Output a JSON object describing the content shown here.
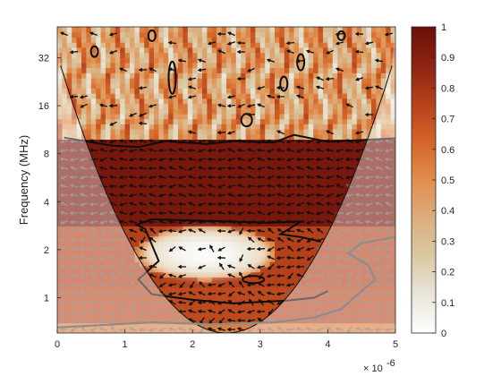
{
  "chart_data": {
    "type": "heatmap",
    "title": "",
    "xlabel": "",
    "ylabel": "Frequency (MHz)",
    "x_multiplier_label": "× 10",
    "x_multiplier_exponent": "-6",
    "xlim": [
      0,
      5
    ],
    "ylim": [
      0.6,
      50
    ],
    "y_scale": "log2",
    "x_ticks": [
      0,
      1,
      2,
      3,
      4,
      5
    ],
    "x_tick_labels": [
      "0",
      "1",
      "2",
      "3",
      "4",
      "5"
    ],
    "y_ticks": [
      1,
      2,
      4,
      8,
      16,
      32
    ],
    "y_tick_labels": [
      "1",
      "2",
      "4",
      "8",
      "16",
      "32"
    ],
    "colorbar": {
      "range": [
        0,
        1
      ],
      "ticks": [
        0,
        0.1,
        0.2,
        0.3,
        0.4,
        0.5,
        0.6,
        0.7,
        0.8,
        0.9,
        1
      ],
      "tick_labels": [
        "0",
        "0.1",
        "0.2",
        "0.3",
        "0.4",
        "0.5",
        "0.6",
        "0.7",
        "0.8",
        "0.9",
        "1"
      ],
      "colormap": "white-to-dark-red",
      "colors": [
        "#ffffff",
        "#e9e5dc",
        "#d9c9a4",
        "#dcae7e",
        "#e08e4d",
        "#d46528",
        "#b5411b",
        "#8c2412",
        "#6a0f08"
      ]
    },
    "regions": [
      {
        "name": "high-frequency-band",
        "freq_range_mhz": [
          10,
          50
        ],
        "coherence": "mixed 0-0.9, patchy"
      },
      {
        "name": "strong-band",
        "freq_range_mhz": [
          2.9,
          10
        ],
        "coherence": 0.95
      },
      {
        "name": "low-coherence-pocket",
        "time_range": [
          1.2,
          3.3
        ],
        "freq_range_mhz": [
          1.2,
          2.8
        ],
        "coherence": 0.05
      },
      {
        "name": "lower-band",
        "freq_range_mhz": [
          0.6,
          1.2
        ],
        "coherence": 0.75
      }
    ],
    "cone_of_influence": "parabolic, vertex near t=2.5, freq ~0.6 MHz",
    "arrows": "phase arrows shown over the field, pointing mostly left"
  }
}
